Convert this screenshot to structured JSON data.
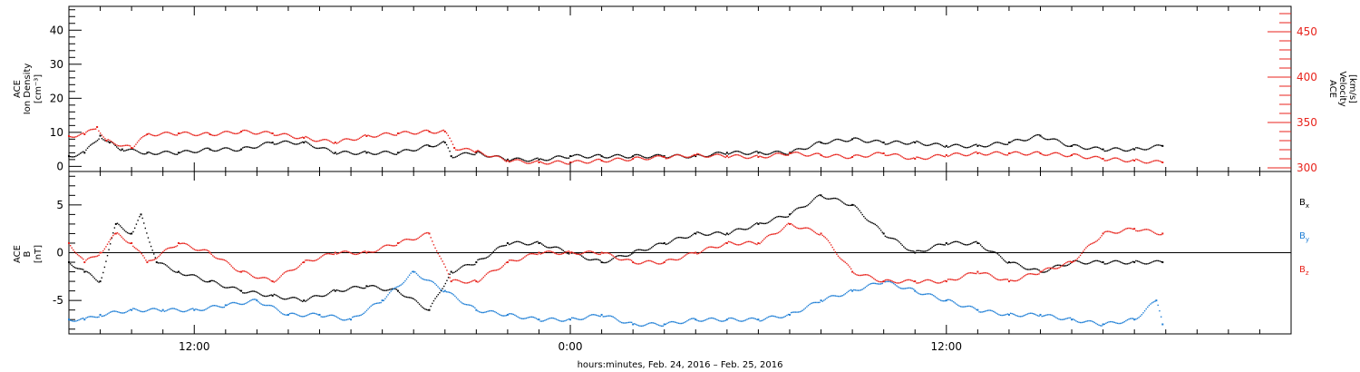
{
  "xlabel": "hours:minutes, Feb. 24, 2016 – Feb. 25, 2016",
  "x_tick_labels": [
    "12:00",
    "0:00",
    "12:00"
  ],
  "colors": {
    "black": "#000000",
    "red": "#e8231c",
    "blue": "#1f7fd6"
  },
  "chart_data": [
    {
      "type": "scatter",
      "x_units": "hours since 00:00 Feb. 24, 2016",
      "xlim": [
        8.0,
        47.0
      ],
      "left_axis": {
        "label_lines": [
          "ACE",
          "Ion Density",
          "[cm⁻³]"
        ],
        "ylim": [
          -1.5,
          47
        ],
        "ticks": [
          0,
          10,
          20,
          30,
          40
        ]
      },
      "right_axis": {
        "label_lines": [
          "ACE",
          "Velocity",
          "[km/s]"
        ],
        "ylim": [
          296,
          478
        ],
        "ticks": [
          300,
          350,
          400,
          450
        ]
      },
      "series": [
        {
          "axis": "left",
          "color": "black",
          "points": [
            [
              8.0,
              3
            ],
            [
              8.5,
              4
            ],
            [
              9.0,
              9
            ],
            [
              9.3,
              7
            ],
            [
              9.7,
              5
            ],
            [
              10.5,
              4
            ],
            [
              11.5,
              4
            ],
            [
              12.5,
              5
            ],
            [
              13.5,
              5
            ],
            [
              14.5,
              7
            ],
            [
              15.5,
              7
            ],
            [
              16.5,
              4
            ],
            [
              17.5,
              4
            ],
            [
              18.5,
              4
            ],
            [
              19.5,
              6
            ],
            [
              20.0,
              7
            ],
            [
              20.2,
              3
            ],
            [
              21.0,
              4
            ],
            [
              22.0,
              2
            ],
            [
              23.0,
              2
            ],
            [
              24.0,
              3
            ],
            [
              25.0,
              3
            ],
            [
              26.0,
              3
            ],
            [
              27.0,
              3
            ],
            [
              28.0,
              3
            ],
            [
              29.0,
              4
            ],
            [
              30.0,
              4
            ],
            [
              31.0,
              4
            ],
            [
              32.0,
              7
            ],
            [
              33.0,
              8
            ],
            [
              34.0,
              7
            ],
            [
              35.0,
              7
            ],
            [
              36.0,
              6
            ],
            [
              37.0,
              6
            ],
            [
              38.0,
              7
            ],
            [
              39.0,
              9
            ],
            [
              40.0,
              6
            ],
            [
              41.0,
              5
            ],
            [
              42.0,
              5
            ],
            [
              42.9,
              6
            ]
          ]
        },
        {
          "axis": "right",
          "color": "red",
          "points": [
            [
              8.0,
              335
            ],
            [
              8.5,
              337
            ],
            [
              8.9,
              345
            ],
            [
              9.2,
              330
            ],
            [
              10.0,
              322
            ],
            [
              10.5,
              337
            ],
            [
              11.5,
              338
            ],
            [
              12.5,
              337
            ],
            [
              13.5,
              340
            ],
            [
              14.5,
              338
            ],
            [
              15.5,
              333
            ],
            [
              16.5,
              328
            ],
            [
              17.5,
              335
            ],
            [
              18.5,
              338
            ],
            [
              19.5,
              340
            ],
            [
              20.0,
              340
            ],
            [
              20.3,
              322
            ],
            [
              21.0,
              318
            ],
            [
              22.0,
              308
            ],
            [
              23.0,
              306
            ],
            [
              24.0,
              306
            ],
            [
              25.0,
              308
            ],
            [
              26.0,
              310
            ],
            [
              27.0,
              312
            ],
            [
              28.0,
              314
            ],
            [
              29.0,
              313
            ],
            [
              30.0,
              312
            ],
            [
              31.0,
              316
            ],
            [
              32.0,
              314
            ],
            [
              33.0,
              312
            ],
            [
              34.0,
              316
            ],
            [
              35.0,
              310
            ],
            [
              36.0,
              314
            ],
            [
              37.0,
              316
            ],
            [
              38.0,
              316
            ],
            [
              39.0,
              316
            ],
            [
              40.0,
              314
            ],
            [
              41.0,
              310
            ],
            [
              42.0,
              308
            ],
            [
              42.9,
              306
            ]
          ]
        }
      ]
    },
    {
      "type": "scatter",
      "x_units": "hours since 00:00 Feb. 24, 2016",
      "xlim": [
        8.0,
        47.0
      ],
      "left_axis": {
        "label_lines": [
          "ACE",
          "B",
          "[nT]"
        ],
        "ylim": [
          -8.5,
          8.5
        ],
        "ticks": [
          -5,
          0,
          5
        ]
      },
      "zero_line": 0,
      "series": [
        {
          "name": "Bx",
          "color": "black",
          "points": [
            [
              8.0,
              -1
            ],
            [
              8.5,
              -2
            ],
            [
              9.0,
              -3
            ],
            [
              9.5,
              3
            ],
            [
              10.0,
              2
            ],
            [
              10.3,
              4
            ],
            [
              10.8,
              -1
            ],
            [
              11.5,
              -2
            ],
            [
              12.5,
              -3
            ],
            [
              13.5,
              -4
            ],
            [
              14.5,
              -4.5
            ],
            [
              15.5,
              -5
            ],
            [
              16.5,
              -4
            ],
            [
              17.5,
              -3.5
            ],
            [
              18.5,
              -4
            ],
            [
              19.5,
              -6
            ],
            [
              20.2,
              -2
            ],
            [
              21.0,
              -1
            ],
            [
              22.0,
              1
            ],
            [
              23.0,
              1
            ],
            [
              24.0,
              0
            ],
            [
              25.0,
              -1
            ],
            [
              26.0,
              0
            ],
            [
              27.0,
              1
            ],
            [
              28.0,
              2
            ],
            [
              29.0,
              2
            ],
            [
              30.0,
              3
            ],
            [
              31.0,
              4
            ],
            [
              32.0,
              6
            ],
            [
              33.0,
              5
            ],
            [
              34.0,
              2
            ],
            [
              35.0,
              0
            ],
            [
              36.0,
              1
            ],
            [
              37.0,
              1
            ],
            [
              38.0,
              -1
            ],
            [
              39.0,
              -2
            ],
            [
              40.0,
              -1
            ],
            [
              41.0,
              -1
            ],
            [
              42.0,
              -1
            ],
            [
              42.9,
              -1
            ]
          ]
        },
        {
          "name": "By",
          "color": "blue",
          "points": [
            [
              8.0,
              -7
            ],
            [
              8.5,
              -7
            ],
            [
              9.0,
              -6.5
            ],
            [
              10.0,
              -6
            ],
            [
              11.0,
              -6
            ],
            [
              12.0,
              -6
            ],
            [
              13.0,
              -5.5
            ],
            [
              14.0,
              -5
            ],
            [
              15.0,
              -6.5
            ],
            [
              16.0,
              -6.5
            ],
            [
              17.0,
              -7
            ],
            [
              18.0,
              -5
            ],
            [
              19.0,
              -2
            ],
            [
              20.0,
              -4
            ],
            [
              21.0,
              -6
            ],
            [
              22.0,
              -6.5
            ],
            [
              23.0,
              -7
            ],
            [
              24.0,
              -7
            ],
            [
              25.0,
              -6.5
            ],
            [
              26.0,
              -7.5
            ],
            [
              27.0,
              -7.5
            ],
            [
              28.0,
              -7
            ],
            [
              29.0,
              -7
            ],
            [
              30.0,
              -7
            ],
            [
              31.0,
              -6.5
            ],
            [
              32.0,
              -5
            ],
            [
              33.0,
              -4
            ],
            [
              34.0,
              -3
            ],
            [
              35.0,
              -4
            ],
            [
              36.0,
              -5
            ],
            [
              37.0,
              -6
            ],
            [
              38.0,
              -6.5
            ],
            [
              39.0,
              -6.5
            ],
            [
              40.0,
              -7
            ],
            [
              41.0,
              -7.5
            ],
            [
              42.0,
              -7
            ],
            [
              42.7,
              -5
            ],
            [
              42.9,
              -7.5
            ]
          ]
        },
        {
          "name": "Bz",
          "color": "red",
          "points": [
            [
              8.0,
              1
            ],
            [
              8.5,
              -1
            ],
            [
              9.0,
              0
            ],
            [
              9.5,
              2
            ],
            [
              10.0,
              1
            ],
            [
              10.5,
              -1
            ],
            [
              11.5,
              1
            ],
            [
              12.5,
              0
            ],
            [
              13.5,
              -2
            ],
            [
              14.5,
              -3
            ],
            [
              15.5,
              -1
            ],
            [
              16.5,
              0
            ],
            [
              17.5,
              0
            ],
            [
              18.5,
              1
            ],
            [
              19.5,
              2
            ],
            [
              20.2,
              -3
            ],
            [
              21.0,
              -3
            ],
            [
              22.0,
              -1
            ],
            [
              23.0,
              0
            ],
            [
              24.0,
              0
            ],
            [
              25.0,
              0
            ],
            [
              26.0,
              -1
            ],
            [
              27.0,
              -1
            ],
            [
              28.0,
              0
            ],
            [
              29.0,
              1
            ],
            [
              30.0,
              1
            ],
            [
              31.0,
              3
            ],
            [
              32.0,
              2
            ],
            [
              33.0,
              -2
            ],
            [
              34.0,
              -3
            ],
            [
              35.0,
              -3
            ],
            [
              36.0,
              -3
            ],
            [
              37.0,
              -2
            ],
            [
              38.0,
              -3
            ],
            [
              39.0,
              -2
            ],
            [
              40.0,
              -1
            ],
            [
              41.0,
              2
            ],
            [
              42.0,
              2.5
            ],
            [
              42.9,
              2
            ]
          ]
        }
      ],
      "legend": [
        {
          "name": "B",
          "sub": "x",
          "color": "black"
        },
        {
          "name": "B",
          "sub": "y",
          "color": "blue"
        },
        {
          "name": "B",
          "sub": "z",
          "color": "red"
        }
      ]
    }
  ]
}
